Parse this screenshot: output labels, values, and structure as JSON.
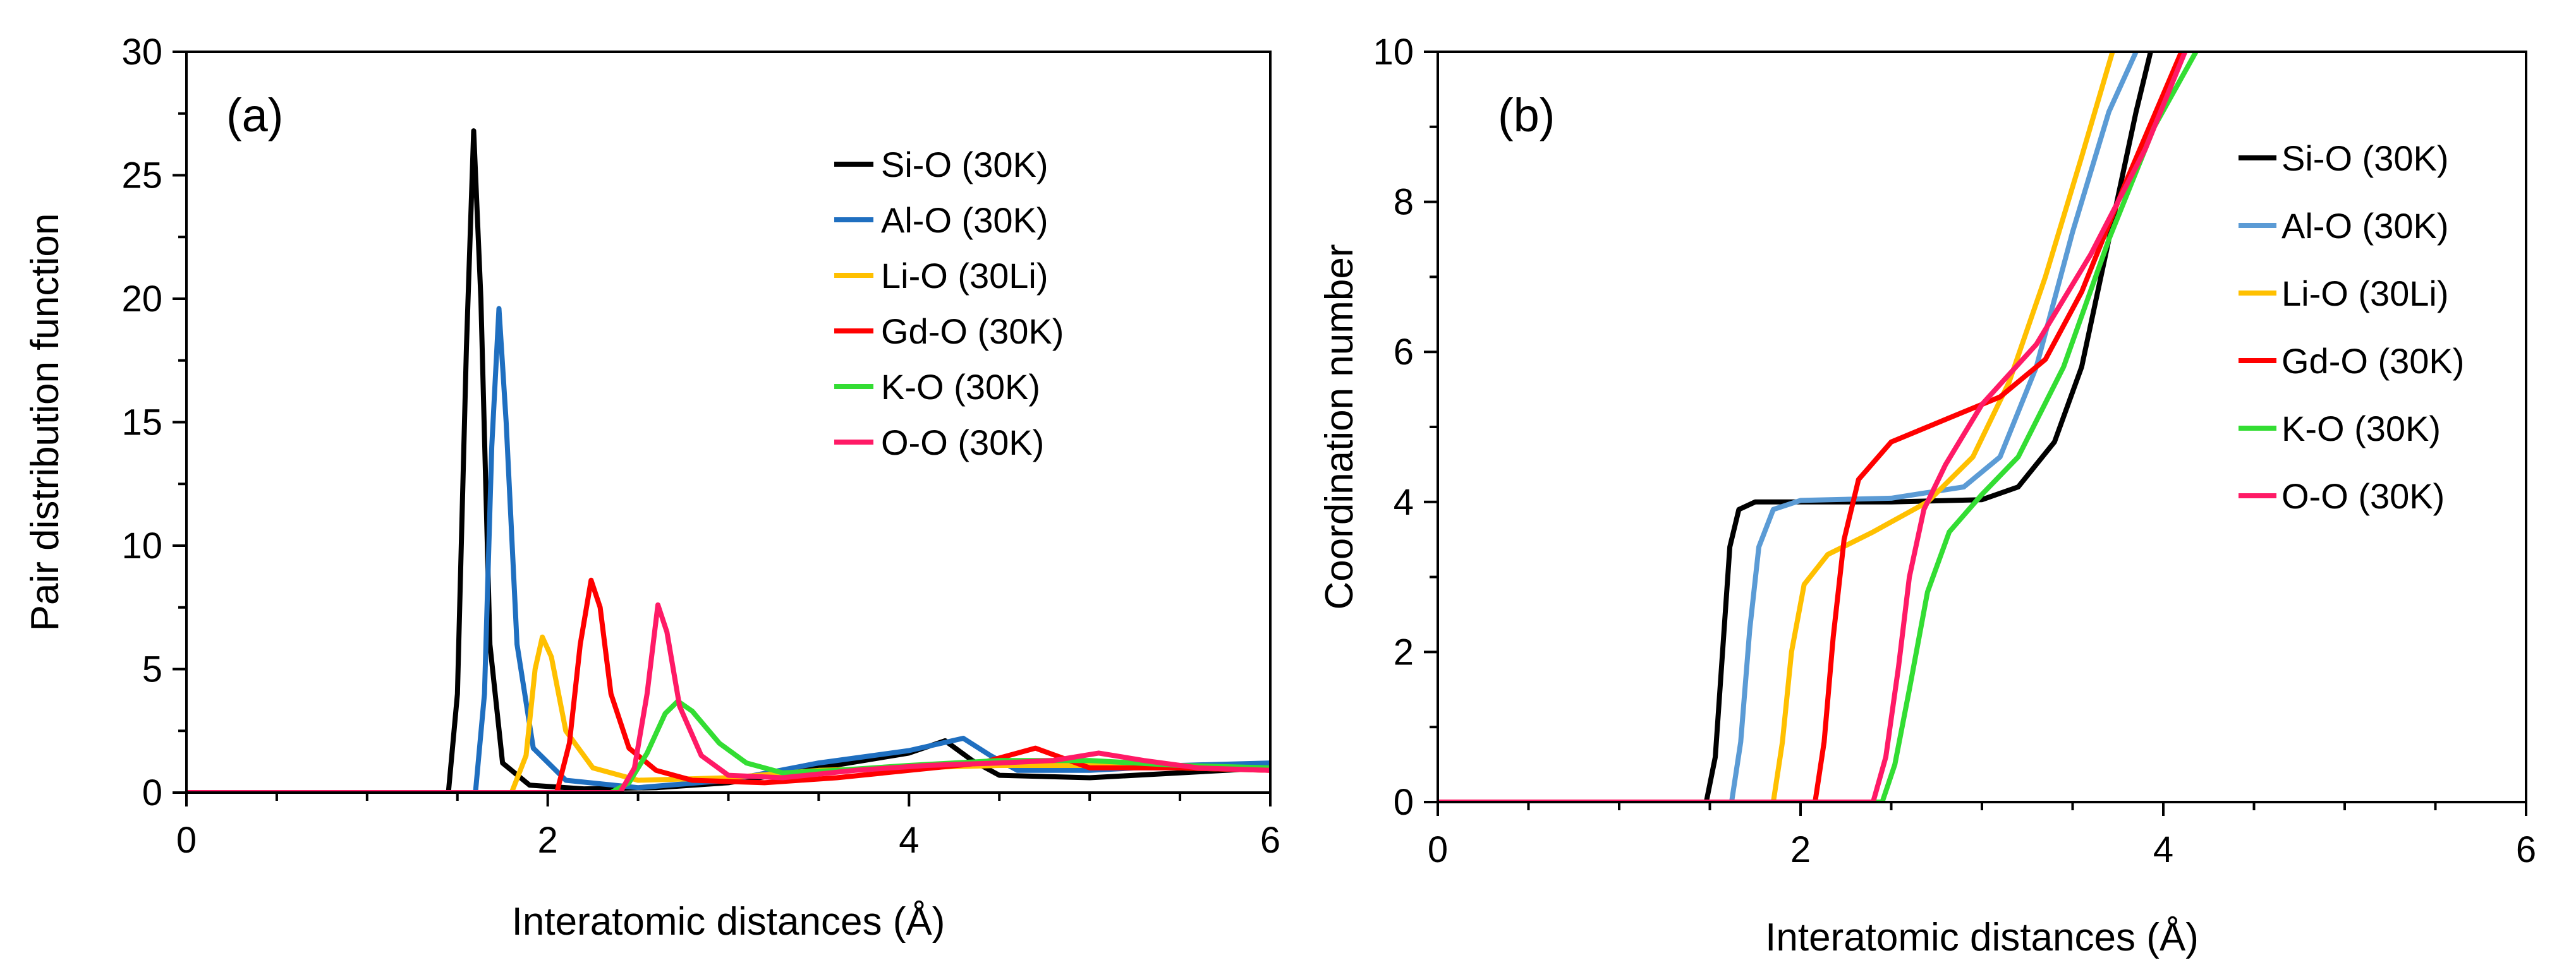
{
  "chart_data": [
    {
      "type": "line",
      "panel_label": "(a)",
      "xlabel": "Interatomic distances (Å)",
      "ylabel": "Pair distribution function",
      "xlim": [
        0,
        6
      ],
      "ylim": [
        0,
        30
      ],
      "xticks": [
        0,
        2,
        4,
        6
      ],
      "yticks": [
        0,
        5,
        10,
        15,
        20,
        25,
        30
      ],
      "grid": false,
      "legend_position": "top-right",
      "series": [
        {
          "name": "Si-O (30K)",
          "color": "#000000",
          "points": [
            [
              0,
              0
            ],
            [
              1.45,
              0
            ],
            [
              1.5,
              4
            ],
            [
              1.55,
              18
            ],
            [
              1.59,
              26.8
            ],
            [
              1.63,
              20
            ],
            [
              1.68,
              6
            ],
            [
              1.75,
              1.2
            ],
            [
              1.9,
              0.3
            ],
            [
              2.2,
              0.15
            ],
            [
              2.6,
              0.2
            ],
            [
              3.0,
              0.4
            ],
            [
              3.5,
              1.0
            ],
            [
              4.0,
              1.6
            ],
            [
              4.2,
              2.1
            ],
            [
              4.35,
              1.3
            ],
            [
              4.5,
              0.7
            ],
            [
              5.0,
              0.6
            ],
            [
              5.5,
              0.8
            ],
            [
              6.0,
              1.0
            ]
          ]
        },
        {
          "name": "Al-O (30K)",
          "color": "#1f6fc0",
          "points": [
            [
              0,
              0
            ],
            [
              1.6,
              0
            ],
            [
              1.65,
              4
            ],
            [
              1.69,
              14
            ],
            [
              1.73,
              19.6
            ],
            [
              1.77,
              15
            ],
            [
              1.83,
              6
            ],
            [
              1.92,
              1.8
            ],
            [
              2.1,
              0.5
            ],
            [
              2.5,
              0.2
            ],
            [
              3.0,
              0.5
            ],
            [
              3.5,
              1.2
            ],
            [
              4.0,
              1.7
            ],
            [
              4.3,
              2.2
            ],
            [
              4.45,
              1.5
            ],
            [
              4.6,
              0.9
            ],
            [
              5.0,
              0.9
            ],
            [
              5.5,
              1.1
            ],
            [
              6.0,
              1.2
            ]
          ]
        },
        {
          "name": "Li-O (30Li)",
          "color": "#ffc000",
          "points": [
            [
              0,
              0
            ],
            [
              1.8,
              0
            ],
            [
              1.88,
              1.5
            ],
            [
              1.93,
              5
            ],
            [
              1.97,
              6.3
            ],
            [
              2.02,
              5.5
            ],
            [
              2.1,
              2.5
            ],
            [
              2.25,
              1.0
            ],
            [
              2.5,
              0.5
            ],
            [
              3.0,
              0.6
            ],
            [
              3.5,
              0.9
            ],
            [
              4.0,
              1.0
            ],
            [
              4.5,
              1.1
            ],
            [
              5.0,
              1.1
            ],
            [
              5.5,
              1.0
            ],
            [
              6.0,
              0.9
            ]
          ]
        },
        {
          "name": "Gd-O (30K)",
          "color": "#ff0000",
          "points": [
            [
              0,
              0
            ],
            [
              2.05,
              0
            ],
            [
              2.12,
              2
            ],
            [
              2.18,
              6
            ],
            [
              2.24,
              8.6
            ],
            [
              2.29,
              7.5
            ],
            [
              2.35,
              4
            ],
            [
              2.45,
              1.8
            ],
            [
              2.6,
              0.9
            ],
            [
              2.8,
              0.5
            ],
            [
              3.2,
              0.4
            ],
            [
              3.6,
              0.6
            ],
            [
              4.0,
              0.9
            ],
            [
              4.4,
              1.2
            ],
            [
              4.7,
              1.8
            ],
            [
              4.85,
              1.4
            ],
            [
              5.0,
              1.0
            ],
            [
              5.5,
              1.0
            ],
            [
              6.0,
              0.9
            ]
          ]
        },
        {
          "name": "K-O (30K)",
          "color": "#33dd33",
          "points": [
            [
              0,
              0
            ],
            [
              2.35,
              0
            ],
            [
              2.45,
              0.4
            ],
            [
              2.55,
              1.6
            ],
            [
              2.65,
              3.2
            ],
            [
              2.72,
              3.7
            ],
            [
              2.8,
              3.3
            ],
            [
              2.95,
              2.0
            ],
            [
              3.1,
              1.2
            ],
            [
              3.3,
              0.8
            ],
            [
              3.6,
              0.9
            ],
            [
              4.0,
              1.1
            ],
            [
              4.5,
              1.3
            ],
            [
              5.0,
              1.3
            ],
            [
              5.5,
              1.1
            ],
            [
              6.0,
              1.0
            ]
          ]
        },
        {
          "name": "O-O (30K)",
          "color": "#ff1a66",
          "points": [
            [
              0,
              0
            ],
            [
              2.4,
              0
            ],
            [
              2.48,
              1
            ],
            [
              2.55,
              4
            ],
            [
              2.61,
              7.6
            ],
            [
              2.66,
              6.5
            ],
            [
              2.73,
              3.5
            ],
            [
              2.85,
              1.5
            ],
            [
              3.0,
              0.7
            ],
            [
              3.3,
              0.6
            ],
            [
              3.7,
              0.9
            ],
            [
              4.1,
              1.1
            ],
            [
              4.5,
              1.2
            ],
            [
              4.8,
              1.3
            ],
            [
              5.05,
              1.6
            ],
            [
              5.3,
              1.3
            ],
            [
              5.6,
              1.0
            ],
            [
              6.0,
              0.9
            ]
          ]
        }
      ]
    },
    {
      "type": "line",
      "panel_label": "(b)",
      "xlabel": "Interatomic distances (Å)",
      "ylabel": "Coordination number",
      "xlim": [
        0,
        6
      ],
      "ylim": [
        0,
        10
      ],
      "xticks": [
        0,
        2,
        4,
        6
      ],
      "yticks": [
        0,
        2,
        4,
        6,
        8,
        10
      ],
      "grid": false,
      "legend_position": "top-right",
      "series": [
        {
          "name": "Si-O (30K)",
          "color": "#000000",
          "points": [
            [
              0,
              0
            ],
            [
              1.48,
              0
            ],
            [
              1.53,
              0.6
            ],
            [
              1.57,
              2
            ],
            [
              1.61,
              3.4
            ],
            [
              1.66,
              3.9
            ],
            [
              1.75,
              4.0
            ],
            [
              2.5,
              4.0
            ],
            [
              3.0,
              4.03
            ],
            [
              3.2,
              4.2
            ],
            [
              3.4,
              4.8
            ],
            [
              3.55,
              5.8
            ],
            [
              3.7,
              7.5
            ],
            [
              3.85,
              9.2
            ],
            [
              3.93,
              10
            ]
          ]
        },
        {
          "name": "Al-O (30K)",
          "color": "#5b9bd5",
          "points": [
            [
              0,
              0
            ],
            [
              1.62,
              0
            ],
            [
              1.67,
              0.8
            ],
            [
              1.72,
              2.3
            ],
            [
              1.77,
              3.4
            ],
            [
              1.85,
              3.9
            ],
            [
              2.0,
              4.02
            ],
            [
              2.5,
              4.05
            ],
            [
              2.9,
              4.2
            ],
            [
              3.1,
              4.6
            ],
            [
              3.3,
              5.8
            ],
            [
              3.5,
              7.6
            ],
            [
              3.7,
              9.2
            ],
            [
              3.85,
              10
            ]
          ]
        },
        {
          "name": "Li-O (30Li)",
          "color": "#ffc000",
          "points": [
            [
              0,
              0
            ],
            [
              1.85,
              0
            ],
            [
              1.9,
              0.8
            ],
            [
              1.95,
              2.0
            ],
            [
              2.02,
              2.9
            ],
            [
              2.15,
              3.3
            ],
            [
              2.4,
              3.6
            ],
            [
              2.7,
              4.0
            ],
            [
              2.95,
              4.6
            ],
            [
              3.15,
              5.6
            ],
            [
              3.35,
              7.0
            ],
            [
              3.55,
              8.6
            ],
            [
              3.72,
              10
            ]
          ]
        },
        {
          "name": "Gd-O (30K)",
          "color": "#ff0000",
          "points": [
            [
              0,
              0
            ],
            [
              2.08,
              0
            ],
            [
              2.13,
              0.8
            ],
            [
              2.18,
              2.2
            ],
            [
              2.24,
              3.5
            ],
            [
              2.32,
              4.3
            ],
            [
              2.5,
              4.8
            ],
            [
              2.8,
              5.1
            ],
            [
              3.1,
              5.4
            ],
            [
              3.35,
              5.9
            ],
            [
              3.55,
              6.8
            ],
            [
              3.8,
              8.3
            ],
            [
              4.1,
              10
            ]
          ]
        },
        {
          "name": "K-O (30K)",
          "color": "#33dd33",
          "points": [
            [
              0,
              0
            ],
            [
              2.45,
              0
            ],
            [
              2.52,
              0.5
            ],
            [
              2.6,
              1.5
            ],
            [
              2.7,
              2.8
            ],
            [
              2.82,
              3.6
            ],
            [
              3.0,
              4.1
            ],
            [
              3.2,
              4.6
            ],
            [
              3.45,
              5.8
            ],
            [
              3.7,
              7.5
            ],
            [
              3.95,
              9.0
            ],
            [
              4.18,
              10
            ]
          ]
        },
        {
          "name": "O-O (30K)",
          "color": "#ff1a66",
          "points": [
            [
              0,
              0
            ],
            [
              2.4,
              0
            ],
            [
              2.47,
              0.6
            ],
            [
              2.54,
              1.8
            ],
            [
              2.6,
              3.0
            ],
            [
              2.68,
              3.9
            ],
            [
              2.8,
              4.5
            ],
            [
              3.0,
              5.3
            ],
            [
              3.3,
              6.1
            ],
            [
              3.6,
              7.3
            ],
            [
              3.9,
              8.7
            ],
            [
              4.12,
              10
            ]
          ]
        }
      ]
    }
  ]
}
